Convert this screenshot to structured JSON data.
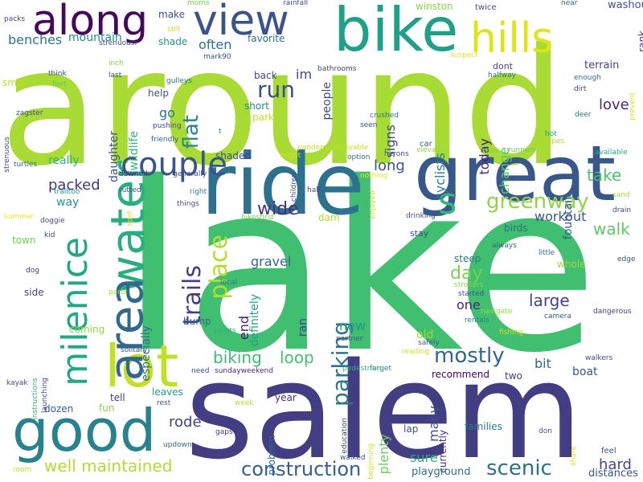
{
  "words": [
    {
      "text": "lake",
      "c": "#3fbf6f"
    },
    {
      "text": "around",
      "c": "#a8db34"
    },
    {
      "text": "salem",
      "c": "#433d84"
    },
    {
      "text": "ride",
      "c": "#2c728e"
    },
    {
      "text": "great",
      "c": "#38588c"
    },
    {
      "text": "bike",
      "c": "#1fa088"
    },
    {
      "text": "view",
      "c": "#3b528b"
    },
    {
      "text": "along",
      "c": "#46085c"
    },
    {
      "text": "good",
      "c": "#26828e"
    },
    {
      "text": "lot",
      "c": "#c2df23"
    },
    {
      "text": "water",
      "c": "#29af7f"
    },
    {
      "text": "area",
      "c": "#31688e"
    },
    {
      "text": "milenice",
      "c": "#22a884"
    },
    {
      "text": "hills",
      "c": "#dfe318"
    },
    {
      "text": "beautiful",
      "c": "#1f9e89"
    },
    {
      "text": "couple",
      "c": "#3a548c"
    },
    {
      "text": "trails",
      "c": "#433e85"
    },
    {
      "text": "place",
      "c": "#b5de2b"
    },
    {
      "text": "parking",
      "c": "#2a768e"
    },
    {
      "text": "greenway",
      "c": "#8ed645"
    },
    {
      "text": "s",
      "c": "#35b779"
    },
    {
      "text": "mostly",
      "c": "#31678e"
    },
    {
      "text": "scenic",
      "c": "#2d708e"
    },
    {
      "text": "construction",
      "c": "#355f8d"
    },
    {
      "text": "well maintained",
      "c": "#b0dd2f"
    },
    {
      "text": "flat",
      "c": "#25858e"
    },
    {
      "text": "run",
      "c": "#3e4c8a"
    },
    {
      "text": "loop",
      "c": "#48c16e"
    },
    {
      "text": "biking",
      "c": "#3dbc74"
    },
    {
      "text": "walk",
      "c": "#5ec962"
    },
    {
      "text": "take",
      "c": "#4ac16d"
    },
    {
      "text": "wide",
      "c": "#46327e"
    },
    {
      "text": "large",
      "c": "#414487"
    },
    {
      "text": "day",
      "c": "#7ad151"
    },
    {
      "text": "love",
      "c": "#482878"
    },
    {
      "text": "hard",
      "c": "#3e4989"
    },
    {
      "text": "rode",
      "c": "#424086"
    },
    {
      "text": "long",
      "c": "#3b528b"
    },
    {
      "text": "packed",
      "c": "#453781"
    },
    {
      "text": "often",
      "c": "#2c738e"
    },
    {
      "text": "benches",
      "c": "#2a788e"
    },
    {
      "text": "mountain",
      "c": "#238a8d"
    },
    {
      "text": "gravel",
      "c": "#30698e"
    },
    {
      "text": "new",
      "c": "#1e9c89"
    },
    {
      "text": "bit",
      "c": "#32658e"
    },
    {
      "text": "many",
      "c": "#3c4f8a"
    },
    {
      "text": "plenty",
      "c": "#6ccd5a"
    },
    {
      "text": "sure",
      "c": "#25ac82"
    },
    {
      "text": "workout",
      "c": "#39568c"
    },
    {
      "text": "really",
      "c": "#2db27d"
    },
    {
      "text": "way",
      "c": "#1f998a"
    },
    {
      "text": "especially",
      "c": "#2e6e8e"
    },
    {
      "text": "definitely",
      "c": "#20a386"
    },
    {
      "text": "today",
      "c": "#482173"
    },
    {
      "text": "change",
      "c": "#5cc863"
    },
    {
      "text": "fountain",
      "c": "#365d8d"
    },
    {
      "text": "signs",
      "c": "#3f4788"
    },
    {
      "text": "cyclists",
      "c": "#26828e"
    },
    {
      "text": "people",
      "c": "#3e4a89"
    },
    {
      "text": "im",
      "c": "#404688"
    },
    {
      "text": "one",
      "c": "#482475"
    },
    {
      "text": "end",
      "c": "#481d6f"
    },
    {
      "text": "daughter",
      "c": "#3b528b"
    },
    {
      "text": "wildlife",
      "c": "#2fb47c"
    },
    {
      "text": "go",
      "c": "#2a768e"
    },
    {
      "text": "step",
      "c": "#000000"
    },
    {
      "text": "steep",
      "c": "#297a8e"
    },
    {
      "text": "boat",
      "c": "#3b528b"
    },
    {
      "text": "ran",
      "c": "#414287"
    },
    {
      "text": "old",
      "c": "#a2da37"
    },
    {
      "text": "lap",
      "c": "#3a548c"
    },
    {
      "text": "problem",
      "c": "#2f6c8e"
    },
    {
      "text": "recommend",
      "c": "#440154"
    },
    {
      "text": "currently",
      "c": "#46307e"
    },
    {
      "text": "families",
      "c": "#287c8e"
    },
    {
      "text": "two",
      "c": "#424186"
    },
    {
      "text": "year",
      "c": "#472c7a"
    },
    {
      "text": "tell",
      "c": "#433e85"
    },
    {
      "text": "leaves",
      "c": "#1fa188"
    },
    {
      "text": "fun",
      "c": "#84d44b"
    },
    {
      "text": "dozen",
      "c": "#355f8d"
    },
    {
      "text": "town",
      "c": "#6ece58"
    },
    {
      "text": "coming",
      "c": "#90d743"
    },
    {
      "text": "bump",
      "c": "#32658e"
    },
    {
      "text": "shade",
      "c": "#1f958b"
    },
    {
      "text": "make",
      "c": "#3d4d8a"
    },
    {
      "text": "favorite",
      "c": "#2d718e"
    },
    {
      "text": "back",
      "c": "#3e4a89"
    },
    {
      "text": "short",
      "c": "#238a8d"
    },
    {
      "text": "park",
      "c": "#c8e020"
    },
    {
      "text": "help",
      "c": "#39568c"
    },
    {
      "text": "small",
      "c": "#bddf26"
    },
    {
      "text": "feet",
      "c": "#5ec962"
    },
    {
      "text": "washout",
      "c": "#3b528b"
    },
    {
      "text": "terrain",
      "c": "#414487"
    },
    {
      "text": "rank",
      "c": "#453882"
    },
    {
      "text": "winston",
      "c": "#8bd646"
    },
    {
      "text": "twice",
      "c": "#3e4c8a"
    },
    {
      "text": "dont",
      "c": "#3f4889"
    },
    {
      "text": "halfway",
      "c": "#297b8e"
    },
    {
      "text": "near",
      "c": "#2f6b8e"
    },
    {
      "text": "enough",
      "c": "#2c738e"
    },
    {
      "text": "dirt",
      "c": "#443a83"
    },
    {
      "text": "deer",
      "c": "#2b748e"
    },
    {
      "text": "crushed",
      "c": "#2a788e"
    },
    {
      "text": "seen",
      "c": "#3b518b"
    },
    {
      "text": "hot",
      "c": "#1fa187"
    },
    {
      "text": "pipes",
      "c": "#b2dd2d"
    },
    {
      "text": "runners",
      "c": "#67cc5c"
    },
    {
      "text": "trees",
      "c": "#7fd34e"
    },
    {
      "text": "available",
      "c": "#29af7f"
    },
    {
      "text": "car",
      "c": "#34608d"
    },
    {
      "text": "elevation",
      "c": "#9bd93c"
    },
    {
      "text": "sand",
      "c": "#a5db36"
    },
    {
      "text": "drain",
      "c": "#3a538b"
    },
    {
      "text": "edge",
      "c": "#3e4a89"
    },
    {
      "text": "drinking",
      "c": "#3d4e8a"
    },
    {
      "text": "birds",
      "c": "#306a8e"
    },
    {
      "text": "stay",
      "c": "#3e4c8a"
    },
    {
      "text": "whole",
      "c": "#9dd93b"
    },
    {
      "text": "always",
      "c": "#32658e"
    },
    {
      "text": "little",
      "c": "#2e6f8e"
    },
    {
      "text": "started",
      "c": "#3b518b"
    },
    {
      "text": "strollers",
      "c": "#8bd646"
    },
    {
      "text": "dangerous",
      "c": "#433e85"
    },
    {
      "text": "rentals",
      "c": "#25838e"
    },
    {
      "text": "navigate",
      "c": "#9bd93c"
    },
    {
      "text": "safely",
      "c": "#35608d"
    },
    {
      "text": "fishing",
      "c": "#dde318"
    },
    {
      "text": "camera",
      "c": "#3b528b"
    },
    {
      "text": "walkers",
      "c": "#3d4d8a"
    },
    {
      "text": "reading",
      "c": "#cde11d"
    },
    {
      "text": "forget",
      "c": "#2a778e"
    },
    {
      "text": "pedestrian",
      "c": "#35b779"
    },
    {
      "text": "feel",
      "c": "#3b528b"
    },
    {
      "text": "distances",
      "c": "#3b528b"
    },
    {
      "text": "playground",
      "c": "#2d718e"
    },
    {
      "text": "share",
      "c": "#e7e419"
    },
    {
      "text": "don",
      "c": "#3b518b"
    },
    {
      "text": "beginning",
      "c": "#d2e21b"
    },
    {
      "text": "walked",
      "c": "#3d4e8a"
    },
    {
      "text": "education",
      "c": "#404387"
    },
    {
      "text": "rest",
      "c": "#3b528b"
    },
    {
      "text": "gaps",
      "c": "#46337f"
    },
    {
      "text": "updown",
      "c": "#2d708e"
    },
    {
      "text": "week",
      "c": "#b5de2b"
    },
    {
      "text": "room",
      "c": "#c5e021"
    },
    {
      "text": "kayak",
      "c": "#3e4a89"
    },
    {
      "text": "instructions",
      "c": "#34b679"
    },
    {
      "text": "launching",
      "c": "#404688"
    },
    {
      "text": "need",
      "c": "#3e4c8a"
    },
    {
      "text": "sundayweekend",
      "c": "#472d7b"
    },
    {
      "text": "solitary",
      "c": "#3b518b"
    },
    {
      "text": "partner",
      "c": "#3b528b"
    },
    {
      "text": "points",
      "c": "#2fb47c"
    },
    {
      "text": "local",
      "c": "#2a788e"
    },
    {
      "text": "parts",
      "c": "#a0da39"
    },
    {
      "text": "side",
      "c": "#3e4a89"
    },
    {
      "text": "dog",
      "c": "#463480"
    },
    {
      "text": "kid",
      "c": "#423f85"
    },
    {
      "text": "summer",
      "c": "#efe51c"
    },
    {
      "text": "doggie",
      "c": "#3e4c8a"
    },
    {
      "text": "trailtoo",
      "c": "#1e9b8a"
    },
    {
      "text": "spot",
      "c": "#dde318"
    },
    {
      "text": "things",
      "c": "#3b518b"
    },
    {
      "text": "right",
      "c": "#26828e"
    },
    {
      "text": "half",
      "c": "#3d4e8a"
    },
    {
      "text": "dam",
      "c": "#b2dd2d"
    },
    {
      "text": "bikesfirst",
      "c": "#7ad151"
    },
    {
      "text": "enjoyed",
      "c": "#bddf26"
    },
    {
      "text": "rutted",
      "c": "#3e4c8a"
    },
    {
      "text": "downed",
      "c": "#404588"
    },
    {
      "text": "generally",
      "c": "#3b528b"
    },
    {
      "text": "children",
      "c": "#3e4a89"
    },
    {
      "text": "nothing",
      "c": "#efe51c"
    },
    {
      "text": "option",
      "c": "#2d718e"
    },
    {
      "text": "herons",
      "c": "#3a538b"
    },
    {
      "text": "might",
      "c": "#d5e21a"
    },
    {
      "text": "pandemicenjoyable",
      "c": "#c5e021"
    },
    {
      "text": "shaded",
      "c": "#3e4989"
    },
    {
      "text": "strenuous",
      "c": "#3e4c8a"
    },
    {
      "text": "turtles",
      "c": "#32658e"
    },
    {
      "text": "zagster",
      "c": "#3b518b"
    },
    {
      "text": "think",
      "c": "#3e4a89"
    },
    {
      "text": "last",
      "c": "#3e4c8a"
    },
    {
      "text": "inch",
      "c": "#8bd646"
    },
    {
      "text": "strenuousi",
      "c": "#3b528b"
    },
    {
      "text": "still",
      "c": "#cde11d"
    },
    {
      "text": "moms",
      "c": "#7ad151"
    },
    {
      "text": "rainfall",
      "c": "#3d4e8a"
    },
    {
      "text": "mark90",
      "c": "#3e4c8a"
    },
    {
      "text": "bathrooms",
      "c": "#424086"
    },
    {
      "text": "gulleys",
      "c": "#2a788e"
    },
    {
      "text": "pushing",
      "c": "#3e4a89"
    },
    {
      "text": "friendly",
      "c": "#35608d"
    },
    {
      "text": "t",
      "c": "#2a788e"
    },
    {
      "text": "suspect",
      "c": "#e7e419"
    },
    {
      "text": "prevent",
      "c": "#dde318"
    },
    {
      "text": "packs",
      "c": "#3e4c8a"
    }
  ]
}
